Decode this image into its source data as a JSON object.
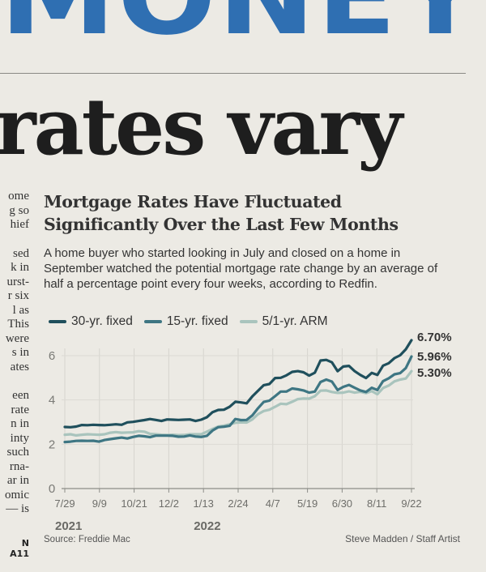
{
  "page": {
    "masthead": "MONEY",
    "headline": "rates vary",
    "column_lines": [
      "ome",
      "g so",
      "hief",
      "",
      "sed",
      "k in",
      "urst-",
      "r six",
      "l as",
      "This",
      "were",
      "s in",
      "ates",
      "",
      "een",
      "rate",
      "n in",
      "inty",
      "such",
      "rna-",
      "ar in",
      "omic",
      "— is"
    ],
    "column_jump": "N A11"
  },
  "chart_data": {
    "type": "line",
    "title_lines": [
      "Mortgage Rates Have Fluctuated",
      "Significantly Over the Last Few Months"
    ],
    "subtitle": "A home buyer who started looking in July and closed on a home in September watched the potential mortgage rate change by an average of half a percentage point every four weeks, according to Redfin.",
    "source": "Source: Freddie Mac",
    "credit": "Steve Madden / Staff Artist",
    "x_tick_labels": [
      "7/29",
      "9/9",
      "10/21",
      "12/2",
      "1/13",
      "2/24",
      "4/7",
      "5/19",
      "6/30",
      "8/11",
      "9/22"
    ],
    "year_labels": [
      {
        "label": "2021",
        "tick_index": 0
      },
      {
        "label": "2022",
        "tick_index": 4
      }
    ],
    "ylim": [
      0,
      7.5
    ],
    "y_ticks": [
      0,
      2,
      4,
      6
    ],
    "y_tick_labels": [
      "0",
      "2",
      "4",
      "6"
    ],
    "grid": true,
    "legend_position": "top",
    "series": [
      {
        "name": "30-yr. fixed",
        "color": "#1f4f5c",
        "end_label": "6.70%",
        "values": [
          2.78,
          2.77,
          2.8,
          2.87,
          2.86,
          2.88,
          2.87,
          2.86,
          2.88,
          2.9,
          2.88,
          2.99,
          3.01,
          3.05,
          3.09,
          3.14,
          3.1,
          3.05,
          3.12,
          3.11,
          3.1,
          3.11,
          3.12,
          3.05,
          3.11,
          3.22,
          3.45,
          3.55,
          3.56,
          3.69,
          3.92,
          3.89,
          3.85,
          4.16,
          4.42,
          4.67,
          4.72,
          4.99,
          5.0,
          5.11,
          5.27,
          5.3,
          5.25,
          5.1,
          5.23,
          5.78,
          5.81,
          5.7,
          5.3,
          5.51,
          5.54,
          5.3,
          5.13,
          4.99,
          5.22,
          5.13,
          5.55,
          5.66,
          5.89,
          6.02,
          6.29,
          6.7
        ]
      },
      {
        "name": "15-yr. fixed",
        "color": "#3e7683",
        "end_label": "5.96%",
        "values": [
          2.1,
          2.12,
          2.15,
          2.16,
          2.15,
          2.16,
          2.12,
          2.19,
          2.23,
          2.27,
          2.3,
          2.26,
          2.33,
          2.38,
          2.36,
          2.32,
          2.39,
          2.39,
          2.39,
          2.38,
          2.34,
          2.35,
          2.4,
          2.35,
          2.33,
          2.38,
          2.62,
          2.77,
          2.79,
          2.83,
          3.14,
          3.09,
          3.1,
          3.3,
          3.63,
          3.91,
          3.97,
          4.17,
          4.38,
          4.38,
          4.52,
          4.48,
          4.43,
          4.33,
          4.38,
          4.81,
          4.92,
          4.83,
          4.45,
          4.59,
          4.68,
          4.55,
          4.43,
          4.36,
          4.55,
          4.45,
          4.85,
          4.98,
          5.16,
          5.21,
          5.44,
          5.96
        ]
      },
      {
        "name": "5/1-yr. ARM",
        "color": "#a9c4bd",
        "end_label": "5.30%",
        "values": [
          2.43,
          2.45,
          2.4,
          2.43,
          2.45,
          2.44,
          2.43,
          2.45,
          2.52,
          2.55,
          2.52,
          2.53,
          2.54,
          2.59,
          2.57,
          2.47,
          2.45,
          2.43,
          2.42,
          2.43,
          2.41,
          2.42,
          2.45,
          2.45,
          2.45,
          2.57,
          2.69,
          2.8,
          2.84,
          2.9,
          2.97,
          2.99,
          2.98,
          3.12,
          3.36,
          3.5,
          3.56,
          3.69,
          3.83,
          3.81,
          3.92,
          4.04,
          4.07,
          4.06,
          4.17,
          4.42,
          4.43,
          4.36,
          4.32,
          4.33,
          4.39,
          4.33,
          4.37,
          4.31,
          4.4,
          4.26,
          4.54,
          4.65,
          4.84,
          4.92,
          4.97,
          5.3
        ]
      }
    ]
  }
}
